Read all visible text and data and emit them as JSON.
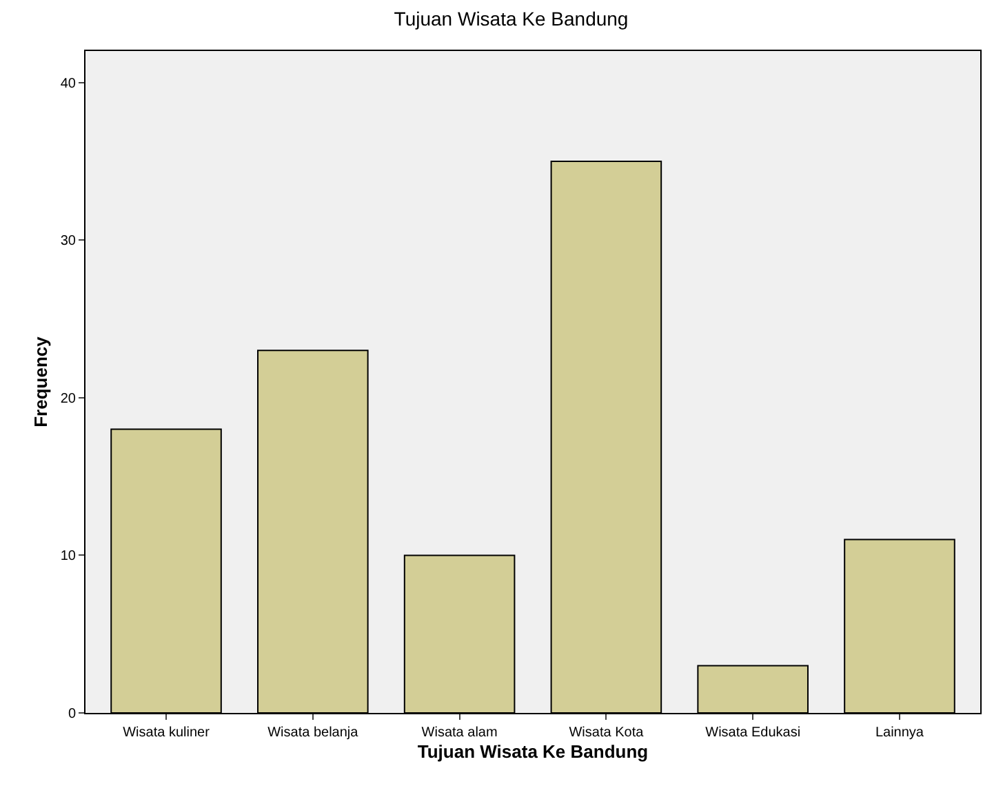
{
  "chart_data": {
    "type": "bar",
    "title": "Tujuan Wisata Ke Bandung",
    "xlabel": "Tujuan Wisata Ke Bandung",
    "ylabel": "Frequency",
    "categories": [
      "Wisata kuliner",
      "Wisata belanja",
      "Wisata alam",
      "Wisata Kota",
      "Wisata Edukasi",
      "Lainnya"
    ],
    "values": [
      18,
      23,
      10,
      35,
      3,
      11
    ],
    "color": "#d3ce96",
    "ylim": [
      0,
      42
    ],
    "yticks": [
      0,
      10,
      20,
      30,
      40
    ],
    "grid": false,
    "legend": false
  }
}
